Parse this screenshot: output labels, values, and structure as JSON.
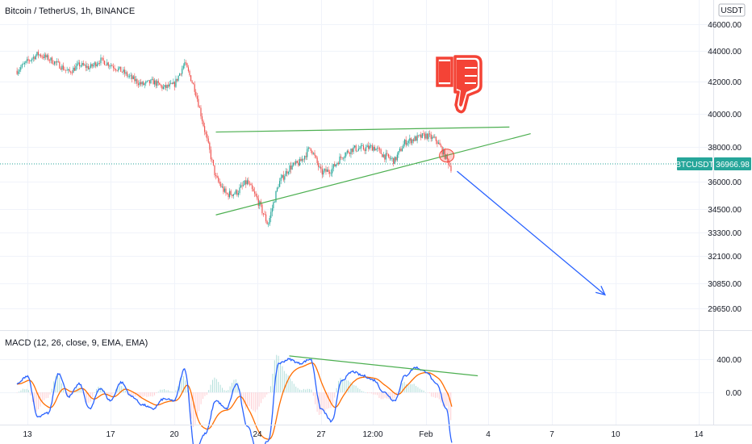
{
  "header": {
    "symbol_title": "Bitcoin / TetherUS, 1h, BINANCE",
    "currency_badge": "USDT"
  },
  "price_tag": {
    "symbol": "BTCUSDT",
    "value": "36966.98"
  },
  "macd": {
    "title": "MACD (12, 26, close, 9, EMA, EMA)"
  },
  "colors": {
    "bull": "#26a69a",
    "bear": "#ef5350",
    "trendline": "#4caf50",
    "arrow": "#2962ff",
    "macd_line": "#2962ff",
    "signal_line": "#ff6d00",
    "tag_bg": "#26a69a",
    "thumb": "#f44336"
  },
  "chart_data": [
    {
      "type": "candlestick",
      "ylabel": "",
      "y_ticks": [
        46000,
        44000,
        42000,
        40000,
        38000,
        36000,
        34500,
        33300,
        32100,
        30850,
        29650
      ],
      "y_tick_labels": [
        "46000.00",
        "44000.00",
        "42000.00",
        "40000.00",
        "38000.00",
        "36000.00",
        "34500.00",
        "33300.00",
        "32100.00",
        "30850.00",
        "29650.00"
      ],
      "x_tick_labels": [
        "13",
        "17",
        "20",
        "24",
        "27",
        "12:00",
        "Feb",
        "4",
        "7",
        "10",
        "14"
      ],
      "price_path": [
        {
          "x": "Jan 12 12:00",
          "y": 42700
        },
        {
          "x": "Jan 13",
          "y": 43300
        },
        {
          "x": "Jan 13 12:00",
          "y": 43800
        },
        {
          "x": "Jan 14",
          "y": 43500
        },
        {
          "x": "Jan 14 12:00",
          "y": 43100
        },
        {
          "x": "Jan 15",
          "y": 42600
        },
        {
          "x": "Jan 15 12:00",
          "y": 43100
        },
        {
          "x": "Jan 16",
          "y": 42900
        },
        {
          "x": "Jan 16 12:00",
          "y": 43400
        },
        {
          "x": "Jan 17",
          "y": 43100
        },
        {
          "x": "Jan 17 12:00",
          "y": 42700
        },
        {
          "x": "Jan 18",
          "y": 42200
        },
        {
          "x": "Jan 18 12:00",
          "y": 41800
        },
        {
          "x": "Jan 19",
          "y": 42000
        },
        {
          "x": "Jan 19 12:00",
          "y": 41600
        },
        {
          "x": "Jan 20",
          "y": 41800
        },
        {
          "x": "Jan 20 12:00",
          "y": 43200
        },
        {
          "x": "Jan 21",
          "y": 41500
        },
        {
          "x": "Jan 21 12:00",
          "y": 38800
        },
        {
          "x": "Jan 22",
          "y": 36200
        },
        {
          "x": "Jan 22 12:00",
          "y": 35300
        },
        {
          "x": "Jan 23",
          "y": 35400
        },
        {
          "x": "Jan 23 12:00",
          "y": 36000
        },
        {
          "x": "Jan 24",
          "y": 35000
        },
        {
          "x": "Jan 24 12:00",
          "y": 33700
        },
        {
          "x": "Jan 25",
          "y": 35900
        },
        {
          "x": "Jan 25 12:00",
          "y": 36800
        },
        {
          "x": "Jan 26",
          "y": 37100
        },
        {
          "x": "Jan 26 12:00",
          "y": 38000
        },
        {
          "x": "Jan 27",
          "y": 36500
        },
        {
          "x": "Jan 27 12:00",
          "y": 36700
        },
        {
          "x": "Jan 28",
          "y": 37500
        },
        {
          "x": "Jan 28 12:00",
          "y": 37900
        },
        {
          "x": "Jan 29",
          "y": 37900
        },
        {
          "x": "Jan 29 12:00",
          "y": 38000
        },
        {
          "x": "Jan 30",
          "y": 37500
        },
        {
          "x": "Jan 30 12:00",
          "y": 37200
        },
        {
          "x": "Jan 31",
          "y": 38300
        },
        {
          "x": "Jan 31 12:00",
          "y": 38500
        },
        {
          "x": "Feb 1",
          "y": 38700
        },
        {
          "x": "Feb 1 12:00",
          "y": 38400
        },
        {
          "x": "Feb 2",
          "y": 37300
        },
        {
          "x": "Feb 2 06:00",
          "y": 36700
        }
      ],
      "current_price": 36966.98,
      "annotations": [
        {
          "type": "trendline",
          "from": {
            "x": "Jan 22",
            "y": 38900
          },
          "to": {
            "x": "Feb 5",
            "y": 39200
          }
        },
        {
          "type": "trendline",
          "from": {
            "x": "Jan 22",
            "y": 34200
          },
          "to": {
            "x": "Feb 6",
            "y": 38800
          }
        },
        {
          "type": "arrow",
          "from": {
            "x": "Feb 2 12:00",
            "y": 36600
          },
          "to": {
            "x": "Feb 9 12:00",
            "y": 30300
          }
        },
        {
          "type": "circle",
          "at": {
            "x": "Feb 2",
            "y": 37500
          }
        },
        {
          "type": "thumbs-down-icon"
        }
      ]
    },
    {
      "type": "macd",
      "y_ticks": [
        400,
        0
      ],
      "y_tick_labels": [
        "400.00",
        "0.00"
      ],
      "macd_path": [
        {
          "x": "Jan 12 12:00",
          "y": 100
        },
        {
          "x": "Jan 13",
          "y": 200
        },
        {
          "x": "Jan 13 12:00",
          "y": -300
        },
        {
          "x": "Jan 14",
          "y": -250
        },
        {
          "x": "Jan 14 12:00",
          "y": 230
        },
        {
          "x": "Jan 15",
          "y": -50
        },
        {
          "x": "Jan 15 12:00",
          "y": 100
        },
        {
          "x": "Jan 16",
          "y": -200
        },
        {
          "x": "Jan 16 12:00",
          "y": 50
        },
        {
          "x": "Jan 17",
          "y": -100
        },
        {
          "x": "Jan 17 12:00",
          "y": 120
        },
        {
          "x": "Jan 18",
          "y": -50
        },
        {
          "x": "Jan 18 12:00",
          "y": -150
        },
        {
          "x": "Jan 19",
          "y": -200
        },
        {
          "x": "Jan 19 12:00",
          "y": -80
        },
        {
          "x": "Jan 20",
          "y": -100
        },
        {
          "x": "Jan 20 12:00",
          "y": 280
        },
        {
          "x": "Jan 21",
          "y": -700
        },
        {
          "x": "Jan 21 12:00",
          "y": -500
        },
        {
          "x": "Jan 22",
          "y": -100
        },
        {
          "x": "Jan 22 12:00",
          "y": -200
        },
        {
          "x": "Jan 23",
          "y": 100
        },
        {
          "x": "Jan 23 12:00",
          "y": -400
        },
        {
          "x": "Jan 24",
          "y": -700
        },
        {
          "x": "Jan 24 12:00",
          "y": -600
        },
        {
          "x": "Jan 25",
          "y": 350
        },
        {
          "x": "Jan 25 12:00",
          "y": 400
        },
        {
          "x": "Jan 26",
          "y": 350
        },
        {
          "x": "Jan 26 12:00",
          "y": 400
        },
        {
          "x": "Jan 27",
          "y": -200
        },
        {
          "x": "Jan 27 12:00",
          "y": -350
        },
        {
          "x": "Jan 28",
          "y": 150
        },
        {
          "x": "Jan 28 12:00",
          "y": 250
        },
        {
          "x": "Jan 29",
          "y": 200
        },
        {
          "x": "Jan 29 12:00",
          "y": 150
        },
        {
          "x": "Jan 30",
          "y": 0
        },
        {
          "x": "Jan 30 12:00",
          "y": -100
        },
        {
          "x": "Jan 31",
          "y": 200
        },
        {
          "x": "Jan 31 12:00",
          "y": 300
        },
        {
          "x": "Feb 1",
          "y": 250
        },
        {
          "x": "Feb 1 12:00",
          "y": 100
        },
        {
          "x": "Feb 2",
          "y": -200
        },
        {
          "x": "Feb 2 06:00",
          "y": -600
        }
      ],
      "annotations": [
        {
          "type": "trendline",
          "from": {
            "x": "Jan 25 12:00",
            "y": 440
          },
          "to": {
            "x": "Feb 3 12:00",
            "y": 200
          }
        }
      ]
    }
  ]
}
